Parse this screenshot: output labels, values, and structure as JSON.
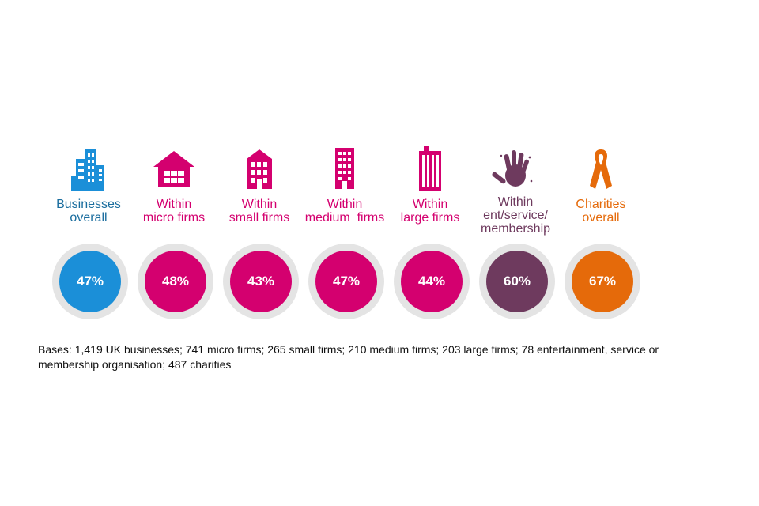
{
  "chart_data": {
    "type": "table",
    "unit": "%",
    "categories": [
      {
        "label_lines": [
          "Businesses",
          "overall"
        ],
        "value": 47,
        "display": "47%",
        "color": "#1b8fd8",
        "label_color": "#1a6d9e",
        "icon": "office-building-icon"
      },
      {
        "label_lines": [
          "Within",
          "micro firms"
        ],
        "value": 48,
        "display": "48%",
        "color": "#d4006f",
        "label_color": "#d4006f",
        "icon": "house-icon"
      },
      {
        "label_lines": [
          "Within",
          "small firms"
        ],
        "value": 43,
        "display": "43%",
        "color": "#d4006f",
        "label_color": "#d4006f",
        "icon": "small-building-icon"
      },
      {
        "label_lines": [
          "Within",
          "medium  firms"
        ],
        "value": 47,
        "display": "47%",
        "color": "#d4006f",
        "label_color": "#d4006f",
        "icon": "medium-building-icon"
      },
      {
        "label_lines": [
          "Within",
          "large firms"
        ],
        "value": 44,
        "display": "44%",
        "color": "#d4006f",
        "label_color": "#d4006f",
        "icon": "tower-icon"
      },
      {
        "label_lines": [
          "Within",
          "ent/service/",
          "membership"
        ],
        "value": 60,
        "display": "60%",
        "color": "#6e3a5e",
        "label_color": "#6e3a5e",
        "icon": "hand-print-icon"
      },
      {
        "label_lines": [
          "Charities",
          "overall"
        ],
        "value": 67,
        "display": "67%",
        "color": "#e56a0a",
        "label_color": "#e56a0a",
        "icon": "ribbon-icon"
      }
    ]
  },
  "bases_note": "Bases: 1,419 UK businesses; 741 micro firms; 265 small firms; 210 medium firms; 203 large firms; 78 entertainment, service or membership organisation; 487 charities"
}
